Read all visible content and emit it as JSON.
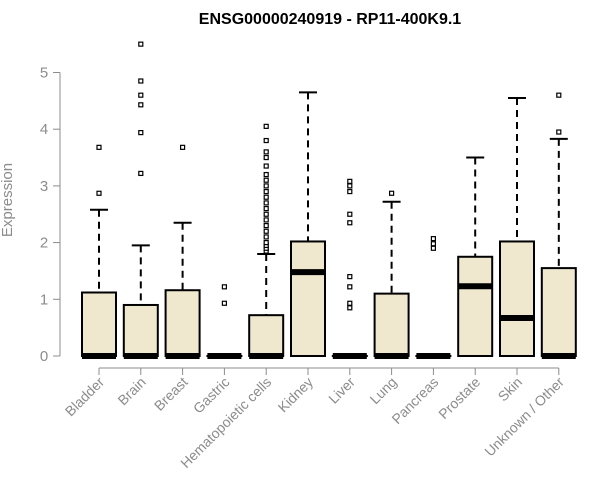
{
  "chart_data": {
    "type": "boxplot",
    "title": "ENSG00000240919 - RP11-400K9.1",
    "xlabel": "",
    "ylabel": "Expression",
    "ylim": [
      0,
      5.6
    ],
    "yticks": [
      0,
      1,
      2,
      3,
      4,
      5
    ],
    "categories": [
      "Bladder",
      "Brain",
      "Breast",
      "Gastric",
      "Hematopoietic cells",
      "Kidney",
      "Liver",
      "Lung",
      "Pancreas",
      "Prostate",
      "Skin",
      "Unknown / Other"
    ],
    "boxes": [
      {
        "category": "Bladder",
        "min": 0,
        "q1": 0,
        "median": 0,
        "q3": 1.12,
        "max": 2.58,
        "outliers": [
          2.87,
          3.68
        ]
      },
      {
        "category": "Brain",
        "min": 0,
        "q1": 0,
        "median": 0,
        "q3": 0.9,
        "max": 1.95,
        "outliers": [
          3.22,
          3.94,
          4.43,
          4.6,
          4.85,
          5.5
        ]
      },
      {
        "category": "Breast",
        "min": 0,
        "q1": 0,
        "median": 0,
        "q3": 1.16,
        "max": 2.35,
        "outliers": [
          3.68
        ]
      },
      {
        "category": "Gastric",
        "min": 0,
        "q1": 0,
        "median": 0,
        "q3": 0,
        "max": 0,
        "outliers": [
          0.93,
          1.22
        ]
      },
      {
        "category": "Hematopoietic cells",
        "min": 0,
        "q1": 0,
        "median": 0,
        "q3": 0.72,
        "max": 1.8,
        "outliers": [
          1.85,
          1.9,
          1.95,
          2.0,
          2.1,
          2.2,
          2.3,
          2.4,
          2.5,
          2.6,
          2.7,
          2.8,
          2.9,
          3.0,
          3.1,
          3.2,
          3.35,
          3.5,
          3.6,
          3.8,
          4.05
        ]
      },
      {
        "category": "Kidney",
        "min": 0,
        "q1": 0,
        "median": 1.48,
        "q3": 2.02,
        "max": 4.65,
        "outliers": []
      },
      {
        "category": "Liver",
        "min": 0,
        "q1": 0,
        "median": 0,
        "q3": 0,
        "max": 0,
        "outliers": [
          0.85,
          0.93,
          1.22,
          1.4,
          2.35,
          2.5,
          2.9,
          3.0,
          3.08
        ]
      },
      {
        "category": "Lung",
        "min": 0,
        "q1": 0,
        "median": 0,
        "q3": 1.1,
        "max": 2.72,
        "outliers": [
          2.87
        ]
      },
      {
        "category": "Pancreas",
        "min": 0,
        "q1": 0,
        "median": 0,
        "q3": 0,
        "max": 0,
        "outliers": [
          1.9,
          1.98,
          2.07
        ]
      },
      {
        "category": "Prostate",
        "min": 0,
        "q1": 0,
        "median": 1.23,
        "q3": 1.75,
        "max": 3.5,
        "outliers": []
      },
      {
        "category": "Skin",
        "min": 0,
        "q1": 0,
        "median": 0.67,
        "q3": 2.02,
        "max": 4.55,
        "outliers": []
      },
      {
        "category": "Unknown / Other",
        "min": 0,
        "q1": 0,
        "median": 0,
        "q3": 1.55,
        "max": 3.83,
        "outliers": [
          3.95,
          4.6
        ]
      }
    ],
    "colors": {
      "box_fill": "#efe8cf",
      "box_stroke": "#000000",
      "median": "#000000",
      "axis": "#8c8c8c"
    },
    "grid": false,
    "legend": "none"
  }
}
